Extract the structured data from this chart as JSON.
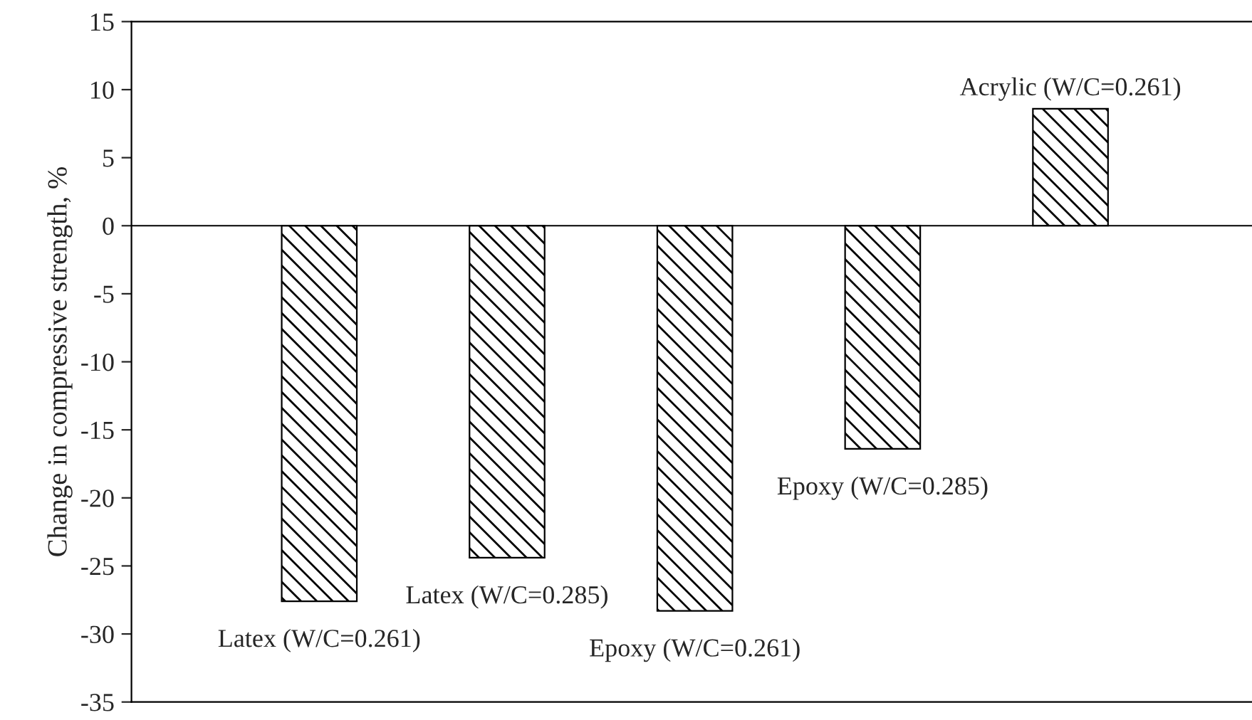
{
  "chart_data": {
    "type": "bar",
    "ylabel": "Change in compressive strength, %",
    "categories": [
      "Latex (W/C=0.261)",
      "Latex (W/C=0.285)",
      "Epoxy (W/C=0.261)",
      "Epoxy (W/C=0.285)",
      "Acrylic (W/C=0.261)"
    ],
    "values": [
      -27.6,
      -24.4,
      -28.3,
      -16.4,
      8.6
    ],
    "color": "#000000",
    "ylim": [
      -35,
      15
    ],
    "yticks": [
      -35,
      -30,
      -25,
      -20,
      -15,
      -10,
      -5,
      0,
      5,
      10,
      15
    ],
    "ref_lines": [
      {
        "axis": "y",
        "value": 0,
        "color": "#000000"
      }
    ],
    "grid": false,
    "legend": false
  }
}
